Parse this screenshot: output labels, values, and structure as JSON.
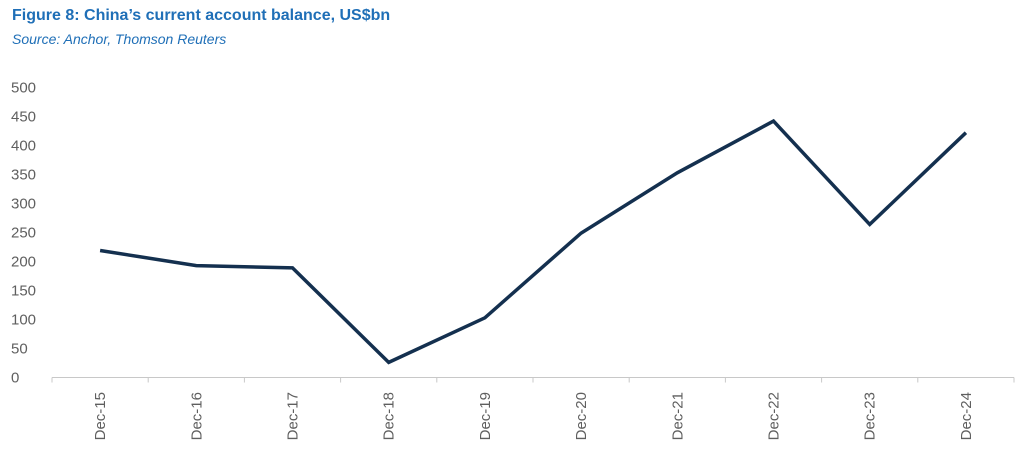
{
  "figure": {
    "title": "Figure 8: China’s current account balance, US$bn",
    "source": "Source: Anchor, Thomson Reuters"
  },
  "colors": {
    "title": "#1f6fb7",
    "line": "#14304f",
    "axis": "#c8c8c8",
    "tick_text": "#5f5f5f"
  },
  "chart_data": {
    "type": "line",
    "title": "Figure 8: China’s current account balance, US$bn",
    "categories": [
      "Dec-15",
      "Dec-16",
      "Dec-17",
      "Dec-18",
      "Dec-19",
      "Dec-20",
      "Dec-21",
      "Dec-22",
      "Dec-23",
      "Dec-24"
    ],
    "series": [
      {
        "values": [
          219,
          193,
          189,
          26,
          103,
          249,
          353,
          442,
          264,
          422
        ]
      }
    ],
    "xlabel": "",
    "ylabel": "",
    "ylim": [
      0,
      500
    ],
    "yticks": [
      0,
      50,
      100,
      150,
      200,
      250,
      300,
      350,
      400,
      450,
      500
    ],
    "grid": false,
    "legend": "none"
  }
}
